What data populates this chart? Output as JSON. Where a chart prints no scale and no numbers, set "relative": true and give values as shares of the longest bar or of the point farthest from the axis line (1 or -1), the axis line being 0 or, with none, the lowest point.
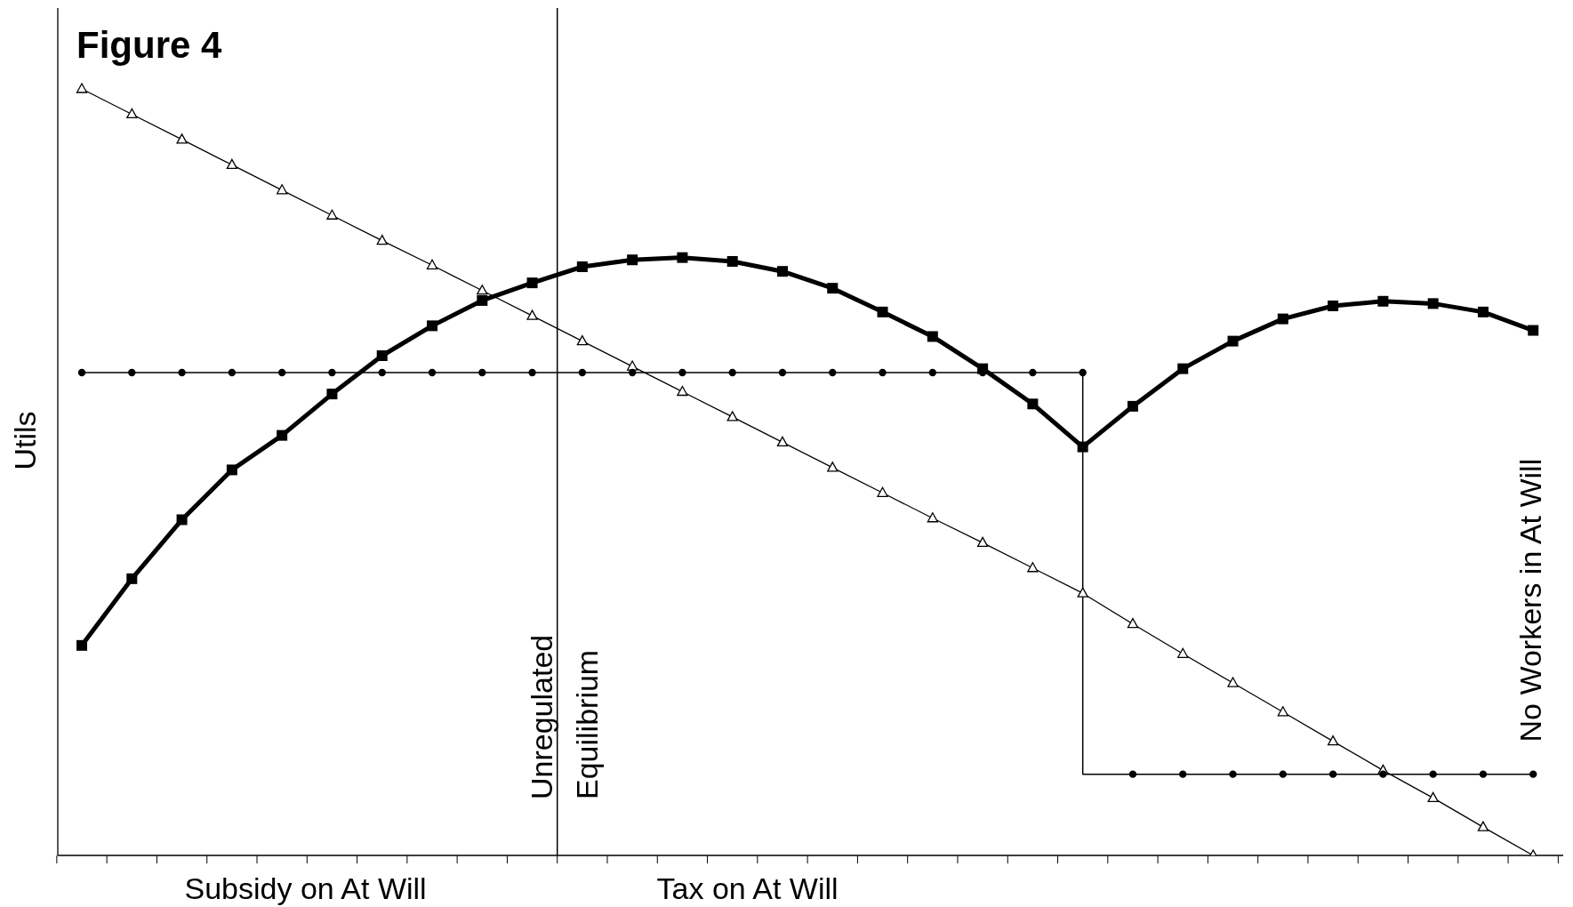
{
  "chart_data": {
    "type": "line",
    "title": "Figure 4",
    "ylabel": "Utils",
    "relative": true,
    "legend": false,
    "grid": false,
    "categories": [
      null,
      null,
      null,
      null,
      null,
      null,
      null,
      null,
      null,
      null,
      null,
      null,
      null,
      null,
      null,
      null,
      null,
      null,
      null,
      null,
      null,
      null,
      null,
      null,
      null,
      null,
      null,
      null,
      null,
      null
    ],
    "series": [
      {
        "color": "#000000",
        "marker": "triangle",
        "values": [
          1.0,
          0.967,
          0.934,
          0.901,
          0.868,
          0.835,
          0.802,
          0.77,
          0.737,
          0.704,
          0.671,
          0.638,
          0.605,
          0.572,
          0.539,
          0.506,
          0.473,
          0.44,
          0.408,
          0.375,
          0.342,
          0.302,
          0.263,
          0.225,
          0.187,
          0.149,
          0.111,
          0.075,
          0.037,
          0.0
        ]
      },
      {
        "color": "#000000",
        "marker": "square",
        "values": [
          0.274,
          0.361,
          0.438,
          0.503,
          0.548,
          0.602,
          0.652,
          0.691,
          0.724,
          0.747,
          0.768,
          0.777,
          0.78,
          0.775,
          0.762,
          0.74,
          0.709,
          0.677,
          0.635,
          0.589,
          0.533,
          0.586,
          0.635,
          0.671,
          0.7,
          0.717,
          0.723,
          0.72,
          0.709,
          0.685
        ]
      },
      {
        "type": "step",
        "color": "#000000",
        "marker": "circle",
        "values": [
          0.63,
          0.63,
          0.63,
          0.63,
          0.63,
          0.63,
          0.63,
          0.63,
          0.63,
          0.63,
          0.63,
          0.63,
          0.63,
          0.63,
          0.63,
          0.63,
          0.63,
          0.63,
          0.63,
          0.63,
          0.63,
          0.106,
          0.106,
          0.106,
          0.106,
          0.106,
          0.106,
          0.106,
          0.106,
          0.106
        ]
      }
    ],
    "annotations": [
      "Subsidy on At Will",
      "Tax on At Will",
      "No Workers in At Will",
      "Unregulated Equilibrium"
    ]
  }
}
